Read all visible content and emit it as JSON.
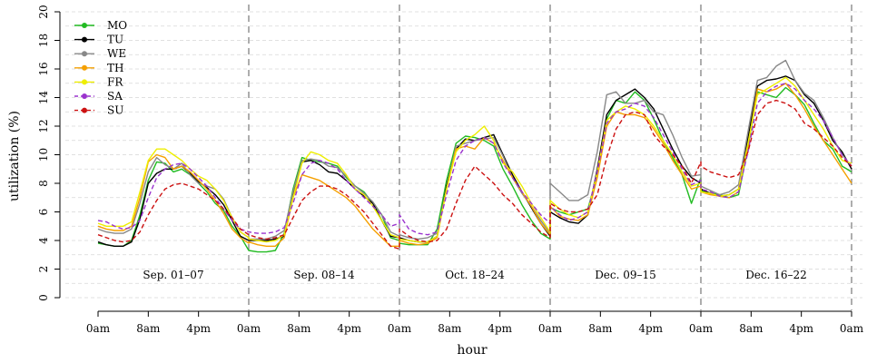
{
  "chart_data": {
    "type": "line",
    "title": "",
    "xlabel": "hour",
    "ylabel": "utilization (%)",
    "ylim": [
      0,
      20
    ],
    "yticks": [
      0,
      2,
      4,
      6,
      8,
      10,
      12,
      14,
      16,
      18,
      20
    ],
    "grid": "horizontal dashed at 1% steps",
    "legend_position": "top-left",
    "x_unit": "hour of week-segment (0-24 repeated per period)",
    "x_tick_labels": [
      "0am",
      "8am",
      "4pm",
      "0am",
      "8am",
      "4pm",
      "0am",
      "8am",
      "4pm",
      "0am",
      "8am",
      "4pm",
      "0am",
      "8am",
      "4pm",
      "0am"
    ],
    "periods": [
      "Sep. 01–07",
      "Sep. 08–14",
      "Oct. 18–24",
      "Dec. 09–15",
      "Dec. 16–22"
    ],
    "series": [
      {
        "name": "MO",
        "color": "#22bb22",
        "dashed": false,
        "values": [
          [
            3.8,
            3.7,
            3.6,
            3.6,
            4.0,
            5.8,
            8.2,
            9.5,
            9.4,
            8.8,
            9.0,
            8.6,
            8.0,
            7.4,
            6.6,
            6.1,
            5.0,
            4.3,
            3.3
          ],
          [
            3.3,
            3.2,
            3.2,
            3.3,
            4.5,
            7.6,
            9.8,
            9.6,
            9.5,
            9.4,
            9.2,
            8.4,
            7.8,
            7.4,
            6.6,
            5.8,
            4.2,
            4.0
          ],
          [
            3.8,
            3.7,
            3.7,
            3.7,
            4.8,
            8.2,
            10.8,
            11.3,
            11.2,
            11.0,
            10.6,
            9.0,
            7.8,
            6.5,
            5.4,
            4.5,
            4.1
          ],
          [
            6.3,
            6.0,
            5.8,
            6.0,
            6.2,
            8.6,
            12.5,
            13.8,
            13.6,
            14.4,
            13.8,
            12.5,
            11.0,
            9.8,
            8.6,
            6.6,
            8.4
          ],
          [
            7.5,
            7.3,
            7.2,
            7.0,
            7.2,
            10.5,
            14.4,
            14.2,
            14.0,
            14.7,
            14.2,
            13.5,
            12.2,
            11.0,
            10.4,
            9.2,
            8.8
          ]
        ]
      },
      {
        "name": "TU",
        "color": "#000000",
        "dashed": false,
        "values": [
          [
            3.9,
            3.7,
            3.6,
            3.6,
            3.9,
            5.5,
            8.0,
            8.7,
            9.0,
            9.0,
            9.2,
            8.7,
            8.1,
            7.7,
            7.2,
            6.5,
            5.4,
            4.3,
            4.0
          ],
          [
            4.0,
            4.0,
            4.0,
            4.1,
            4.3,
            7.2,
            9.5,
            9.6,
            9.3,
            8.8,
            8.7,
            8.2,
            7.6,
            7.1,
            6.6,
            5.4,
            4.3,
            4.2
          ],
          [
            4.2,
            4.0,
            3.9,
            3.9,
            4.3,
            7.8,
            10.4,
            11.1,
            11.0,
            11.2,
            11.4,
            10.0,
            8.6,
            7.4,
            6.3,
            5.2,
            4.3
          ],
          [
            6.0,
            5.6,
            5.3,
            5.2,
            5.8,
            9.0,
            12.8,
            13.8,
            14.2,
            14.6,
            14.0,
            13.2,
            11.8,
            10.4,
            9.2,
            8.4,
            8.0
          ],
          [
            7.6,
            7.3,
            7.1,
            7.2,
            7.6,
            11.2,
            14.8,
            15.2,
            15.3,
            15.5,
            15.2,
            14.2,
            13.6,
            12.4,
            11.0,
            10.2,
            9.0
          ]
        ]
      },
      {
        "name": "WE",
        "color": "#888888",
        "dashed": false,
        "values": [
          [
            4.8,
            4.6,
            4.5,
            4.5,
            4.8,
            6.6,
            8.8,
            9.8,
            9.3,
            9.0,
            9.4,
            8.6,
            8.0,
            7.8,
            7.6,
            6.9,
            5.6,
            4.6,
            4.2
          ],
          [
            4.1,
            4.1,
            4.1,
            4.3,
            4.7,
            7.4,
            9.6,
            9.7,
            9.6,
            9.2,
            9.1,
            8.5,
            7.8,
            7.3,
            6.7,
            5.8,
            4.6,
            4.3
          ],
          [
            4.4,
            4.2,
            4.1,
            4.2,
            4.5,
            7.6,
            10.6,
            10.8,
            11.0,
            11.1,
            11.2,
            9.9,
            8.4,
            7.3,
            6.4,
            5.4,
            4.5
          ],
          [
            8.0,
            7.4,
            6.8,
            6.8,
            7.2,
            10.2,
            14.2,
            14.4,
            13.6,
            13.6,
            13.8,
            13.0,
            12.8,
            11.4,
            9.8,
            8.5,
            8.6
          ],
          [
            7.8,
            7.5,
            7.2,
            7.4,
            7.9,
            11.6,
            15.2,
            15.4,
            16.2,
            16.6,
            15.2,
            14.3,
            13.8,
            12.6,
            11.2,
            10.0,
            9.2
          ]
        ]
      },
      {
        "name": "TH",
        "color": "#f5a000",
        "dashed": false,
        "values": [
          [
            5.0,
            4.8,
            4.7,
            4.7,
            5.0,
            7.0,
            9.5,
            10.0,
            9.8,
            9.0,
            9.2,
            8.8,
            8.2,
            7.6,
            6.8,
            5.9,
            4.8,
            4.2,
            3.8
          ],
          [
            3.9,
            3.7,
            3.6,
            3.6,
            4.2,
            7.0,
            8.6,
            8.4,
            8.2,
            7.8,
            7.4,
            7.0,
            6.4,
            5.6,
            4.8,
            4.2,
            3.6,
            3.6
          ],
          [
            4.0,
            3.8,
            3.7,
            3.8,
            4.2,
            7.6,
            10.4,
            10.6,
            10.4,
            11.2,
            10.8,
            9.6,
            8.4,
            7.4,
            6.4,
            5.2,
            4.4
          ],
          [
            6.4,
            5.7,
            5.5,
            5.4,
            5.8,
            8.4,
            12.0,
            13.0,
            12.8,
            12.8,
            12.6,
            11.8,
            10.8,
            9.6,
            8.6,
            7.6,
            7.8
          ],
          [
            7.4,
            7.2,
            7.1,
            7.0,
            7.4,
            10.6,
            14.6,
            14.4,
            14.6,
            15.0,
            14.2,
            13.2,
            12.0,
            11.0,
            10.0,
            9.0,
            8.0
          ]
        ]
      },
      {
        "name": "FR",
        "color": "#eeee00",
        "dashed": false,
        "values": [
          [
            5.2,
            5.0,
            5.0,
            5.0,
            5.3,
            7.4,
            9.6,
            10.4,
            10.4,
            10.0,
            9.6,
            9.0,
            8.5,
            8.2,
            7.6,
            6.8,
            5.6,
            4.6,
            4.2
          ],
          [
            4.1,
            4.0,
            3.9,
            4.0,
            4.4,
            7.0,
            9.4,
            10.2,
            10.0,
            9.6,
            9.4,
            8.6,
            7.6,
            7.2,
            6.4,
            5.4,
            4.4,
            4.2
          ],
          [
            4.1,
            4.0,
            3.9,
            3.9,
            4.3,
            7.6,
            10.2,
            11.0,
            11.4,
            12.0,
            11.0,
            9.4,
            8.8,
            7.8,
            6.6,
            5.6,
            4.6
          ],
          [
            6.8,
            6.2,
            5.8,
            5.6,
            6.0,
            8.8,
            12.4,
            13.0,
            13.4,
            13.2,
            12.8,
            12.0,
            11.0,
            10.0,
            8.8,
            7.8,
            8.0
          ],
          [
            7.4,
            7.3,
            7.1,
            7.2,
            7.6,
            10.8,
            14.2,
            14.6,
            15.0,
            15.4,
            14.8,
            13.8,
            12.8,
            11.8,
            10.6,
            9.6,
            9.4
          ]
        ]
      },
      {
        "name": "SA",
        "color": "#9a32cd",
        "dashed": true,
        "values": [
          [
            5.4,
            5.3,
            5.0,
            4.8,
            4.9,
            5.4,
            7.0,
            8.4,
            9.0,
            9.3,
            9.4,
            9.0,
            8.4,
            7.8,
            7.0,
            6.2,
            5.4,
            4.8,
            4.6
          ],
          [
            4.6,
            4.5,
            4.5,
            4.6,
            4.9,
            6.6,
            8.6,
            9.4,
            9.6,
            9.4,
            9.0,
            8.2,
            7.6,
            7.0,
            6.4,
            5.8,
            5.0,
            5.2
          ],
          [
            5.8,
            4.8,
            4.5,
            4.4,
            4.6,
            7.2,
            9.6,
            10.6,
            11.0,
            11.2,
            10.8,
            9.4,
            8.4,
            7.4,
            6.6,
            5.8,
            5.2
          ],
          [
            6.4,
            5.8,
            5.4,
            5.6,
            6.0,
            8.8,
            12.2,
            13.0,
            13.2,
            13.6,
            13.4,
            12.6,
            11.4,
            10.2,
            9.0,
            7.9,
            8.2
          ],
          [
            7.6,
            7.4,
            7.1,
            7.0,
            7.4,
            10.2,
            13.6,
            14.4,
            14.8,
            15.0,
            14.6,
            13.8,
            13.2,
            12.4,
            11.2,
            10.0,
            9.2
          ]
        ]
      },
      {
        "name": "SU",
        "color": "#cc1111",
        "dashed": true,
        "values": [
          [
            4.4,
            4.2,
            4.0,
            3.9,
            4.0,
            4.6,
            5.8,
            6.8,
            7.6,
            7.9,
            8.0,
            7.8,
            7.6,
            7.2,
            6.8,
            6.2,
            5.6,
            4.8,
            4.4
          ],
          [
            4.4,
            4.2,
            4.1,
            4.2,
            4.4,
            5.6,
            6.8,
            7.4,
            7.8,
            7.8,
            7.6,
            7.2,
            6.6,
            6.0,
            5.2,
            4.4,
            3.6,
            3.4
          ],
          [
            4.8,
            4.3,
            4.0,
            3.9,
            4.0,
            4.8,
            6.6,
            8.2,
            9.2,
            8.6,
            8.0,
            7.2,
            6.6,
            5.8,
            5.2,
            4.6,
            4.2
          ],
          [
            6.6,
            6.2,
            6.0,
            6.0,
            6.2,
            7.2,
            9.8,
            11.8,
            12.8,
            13.0,
            12.8,
            11.4,
            10.6,
            10.0,
            9.2,
            8.0,
            9.5
          ],
          [
            9.2,
            8.8,
            8.6,
            8.4,
            8.6,
            10.2,
            12.8,
            13.6,
            13.8,
            13.6,
            13.2,
            12.2,
            11.8,
            11.2,
            10.6,
            9.8,
            9.2
          ]
        ]
      }
    ]
  }
}
